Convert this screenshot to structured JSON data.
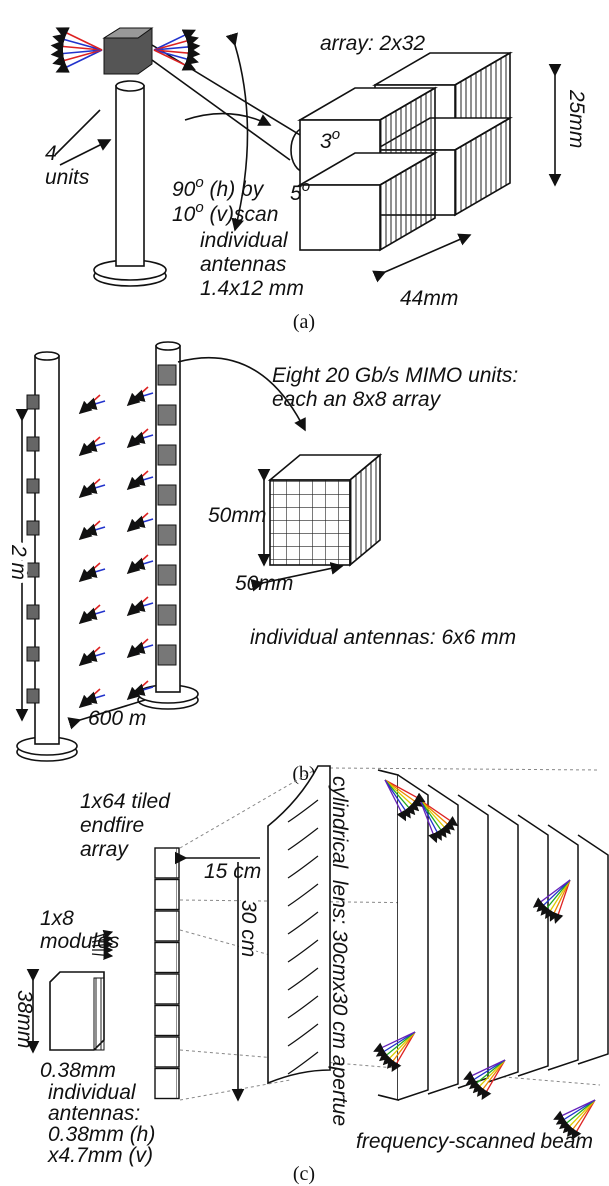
{
  "panel_a": {
    "array": "array: 2x32",
    "height": "25mm",
    "width": "44mm",
    "units": [
      "4",
      "units"
    ],
    "scan": [
      {
        "num": "90",
        "sup": "o",
        "rest": " (h) by"
      },
      {
        "num": "10",
        "sup": "o",
        "rest": " (v)scan"
      }
    ],
    "angles": [
      {
        "num": "3",
        "sup": "o"
      },
      {
        "num": "5",
        "sup": "o"
      }
    ],
    "antennas": [
      "individual",
      "antennas",
      "1.4x12 mm"
    ],
    "caption": "(a)"
  },
  "panel_b": {
    "title": [
      "Eight 20 Gb/s MIMO units:",
      "each an 8x8 array"
    ],
    "depth": "50mm",
    "width": "50mm",
    "antennas": "individual antennas: 6x6 mm",
    "height": "2 m",
    "spacing": "600 m",
    "caption": "(b)"
  },
  "panel_c": {
    "array": [
      "1x64  tiled",
      "endfire",
      "array"
    ],
    "depth": "15 cm",
    "length": "30 cm",
    "modules": [
      "1x8",
      "modules"
    ],
    "module_height": "38mm",
    "module_width": "0.38mm",
    "antennas": [
      "individual",
      "antennas:",
      "0.38mm (h)",
      "x4.7mm (v)"
    ],
    "lens": "cylindrical  lens: 30cmx30 cm apertue",
    "beam": "frequency-scanned beam",
    "caption": "(c)"
  }
}
